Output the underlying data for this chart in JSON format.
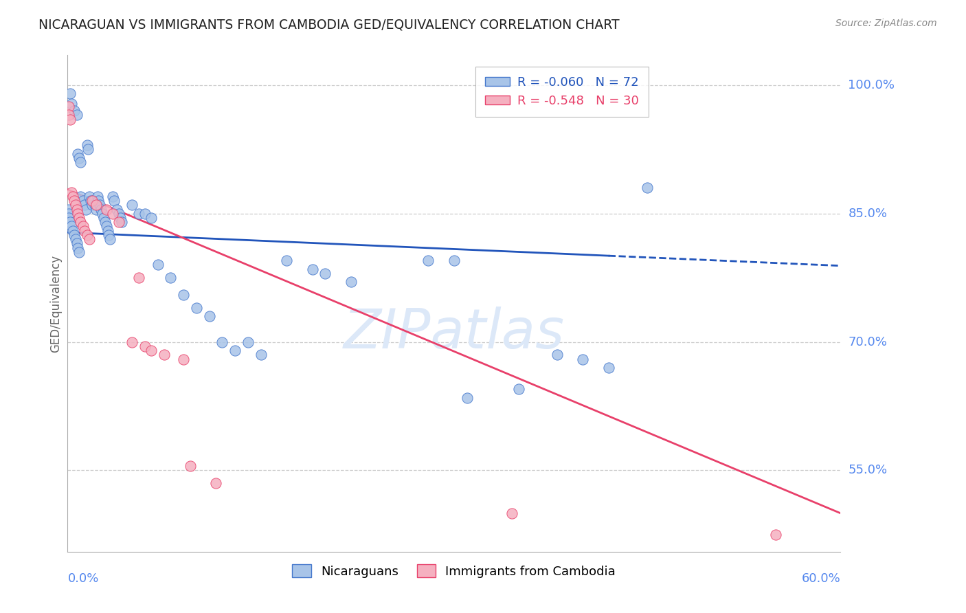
{
  "title": "NICARAGUAN VS IMMIGRANTS FROM CAMBODIA GED/EQUIVALENCY CORRELATION CHART",
  "source": "Source: ZipAtlas.com",
  "ylabel": "GED/Equivalency",
  "ytick_labels": [
    "100.0%",
    "85.0%",
    "70.0%",
    "55.0%"
  ],
  "ytick_vals": [
    1.0,
    0.85,
    0.7,
    0.55
  ],
  "xlim": [
    0.0,
    0.6
  ],
  "ylim": [
    0.455,
    1.035
  ],
  "blue_R": "-0.060",
  "blue_N": "72",
  "pink_R": "-0.548",
  "pink_N": "30",
  "legend_label_blue": "Nicaraguans",
  "legend_label_pink": "Immigrants from Cambodia",
  "blue_color": "#a8c4e8",
  "pink_color": "#f5b0c0",
  "blue_edge_color": "#4477cc",
  "pink_edge_color": "#e8406a",
  "blue_line_color": "#2255bb",
  "pink_line_color": "#e8406a",
  "watermark_color": "#dce8f8",
  "title_color": "#222222",
  "axis_label_color": "#5588ee",
  "grid_color": "#cccccc",
  "spine_color": "#aaaaaa",
  "blue_scatter_x": [
    0.002,
    0.003,
    0.005,
    0.007,
    0.008,
    0.009,
    0.01,
    0.01,
    0.012,
    0.013,
    0.014,
    0.015,
    0.016,
    0.017,
    0.018,
    0.019,
    0.02,
    0.021,
    0.022,
    0.023,
    0.024,
    0.025,
    0.026,
    0.027,
    0.028,
    0.029,
    0.03,
    0.031,
    0.032,
    0.033,
    0.035,
    0.036,
    0.038,
    0.04,
    0.041,
    0.042,
    0.05,
    0.055,
    0.06,
    0.065,
    0.07,
    0.08,
    0.09,
    0.1,
    0.11,
    0.12,
    0.13,
    0.14,
    0.15,
    0.17,
    0.19,
    0.2,
    0.22,
    0.28,
    0.3,
    0.31,
    0.35,
    0.38,
    0.4,
    0.42,
    0.45,
    0.001,
    0.001,
    0.001,
    0.002,
    0.003,
    0.004,
    0.005,
    0.006,
    0.007,
    0.008,
    0.009
  ],
  "blue_scatter_y": [
    0.99,
    0.978,
    0.97,
    0.965,
    0.92,
    0.915,
    0.91,
    0.87,
    0.865,
    0.86,
    0.855,
    0.93,
    0.925,
    0.87,
    0.865,
    0.86,
    0.865,
    0.86,
    0.855,
    0.87,
    0.865,
    0.86,
    0.855,
    0.85,
    0.845,
    0.84,
    0.835,
    0.83,
    0.825,
    0.82,
    0.87,
    0.865,
    0.855,
    0.85,
    0.845,
    0.84,
    0.86,
    0.85,
    0.85,
    0.845,
    0.79,
    0.775,
    0.755,
    0.74,
    0.73,
    0.7,
    0.69,
    0.7,
    0.685,
    0.795,
    0.785,
    0.78,
    0.77,
    0.795,
    0.795,
    0.635,
    0.645,
    0.685,
    0.68,
    0.67,
    0.88,
    0.855,
    0.85,
    0.845,
    0.84,
    0.835,
    0.83,
    0.825,
    0.82,
    0.815,
    0.81,
    0.805
  ],
  "pink_scatter_x": [
    0.001,
    0.001,
    0.002,
    0.003,
    0.004,
    0.005,
    0.006,
    0.007,
    0.008,
    0.009,
    0.01,
    0.012,
    0.013,
    0.015,
    0.017,
    0.019,
    0.022,
    0.03,
    0.035,
    0.04,
    0.05,
    0.055,
    0.06,
    0.065,
    0.075,
    0.09,
    0.095,
    0.115,
    0.345,
    0.55
  ],
  "pink_scatter_y": [
    0.975,
    0.965,
    0.96,
    0.875,
    0.87,
    0.865,
    0.86,
    0.855,
    0.85,
    0.845,
    0.84,
    0.835,
    0.83,
    0.825,
    0.82,
    0.865,
    0.86,
    0.855,
    0.85,
    0.84,
    0.7,
    0.775,
    0.695,
    0.69,
    0.685,
    0.68,
    0.555,
    0.535,
    0.5,
    0.475
  ]
}
